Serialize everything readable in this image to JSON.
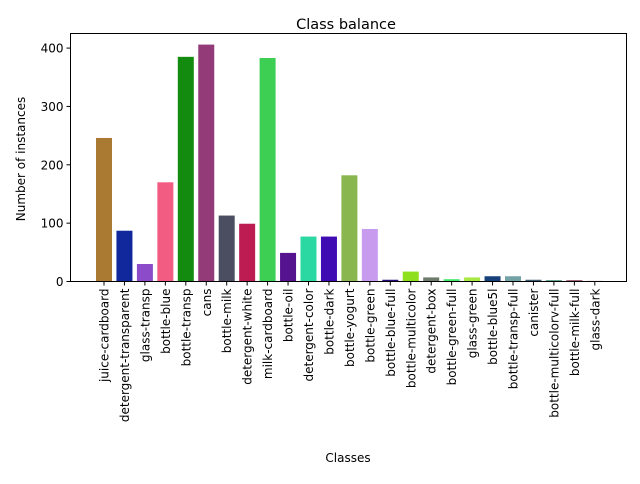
{
  "chart_data": {
    "type": "bar",
    "title": "Class balance",
    "xlabel": "Classes",
    "ylabel": "Number of instances",
    "ylim": [
      0,
      425
    ],
    "yticks": [
      0,
      100,
      200,
      300,
      400
    ],
    "grid": false,
    "categories": [
      "juice-cardboard",
      "detergent-transparent",
      "glass-transp",
      "bottle-blue",
      "bottle-transp",
      "cans",
      "bottle-milk",
      "detergent-white",
      "milk-cardboard",
      "bottle-oil",
      "detergent-color",
      "bottle-dark",
      "bottle-yogurt",
      "bottle-green",
      "bottle-blue-full",
      "bottle-multicolor",
      "detergent-box",
      "bottle-green-full",
      "glass-green",
      "bottle-blue5l",
      "bottle-transp-full",
      "canister",
      "bottle-multicolorv-full",
      "bottle-milk-full",
      "glass-dark"
    ],
    "values": [
      246,
      87,
      30,
      170,
      385,
      406,
      113,
      99,
      383,
      49,
      77,
      77,
      182,
      90,
      3,
      17,
      7,
      4,
      7,
      9,
      9,
      3,
      2,
      2,
      1
    ],
    "colors": [
      "#ab7a32",
      "#10289c",
      "#8c4cc9",
      "#f25b82",
      "#138b0e",
      "#933b79",
      "#4b4e61",
      "#bd1c53",
      "#3ccf54",
      "#56138f",
      "#2bd8a2",
      "#3f0bb3",
      "#8ab650",
      "#c89bef",
      "#2b0e80",
      "#8ee01e",
      "#6d7b6a",
      "#48e86c",
      "#a8e843",
      "#173f7a",
      "#72a2a5",
      "#3a5d72",
      "#1c7a5a",
      "#7b1f3c",
      "#a12a2a"
    ]
  }
}
